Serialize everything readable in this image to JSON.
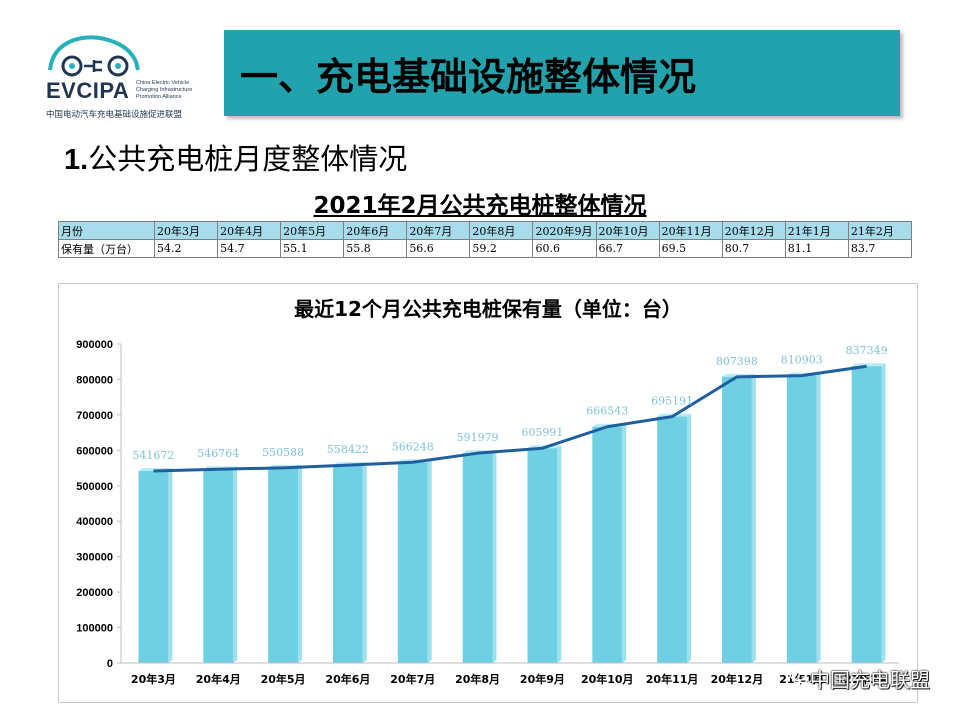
{
  "logo": {
    "name": "EVCIPA",
    "english_lines": [
      "China Electric Vehicle",
      "Charging Infrastructure",
      "Promotion Alliance"
    ],
    "chinese": "中国电动汽车充电基础设施促进联盟"
  },
  "banner": {
    "title": "一、充电基础设施整体情况"
  },
  "section": {
    "num": "1.",
    "text": "公共充电桩月度整体情况"
  },
  "table": {
    "title": "2021年2月公共充电桩整体情况",
    "header": [
      "月份",
      "20年3月",
      "20年4月",
      "20年5月",
      "20年6月",
      "20年7月",
      "20年8月",
      "2020年9月",
      "20年10月",
      "20年11月",
      "20年12月",
      "21年1月",
      "21年2月"
    ],
    "row": [
      "保有量（万台）",
      "54.2",
      "54.7",
      "55.1",
      "55.8",
      "56.6",
      "59.2",
      "60.6",
      "66.7",
      "69.5",
      "80.7",
      "81.1",
      "83.7"
    ]
  },
  "chart_data": {
    "type": "bar",
    "title": "最近12个月公共充电桩保有量（单位：台）",
    "categories": [
      "20年3月",
      "20年4月",
      "20年5月",
      "20年6月",
      "20年7月",
      "20年8月",
      "20年9月",
      "20年10月",
      "20年11月",
      "20年12月",
      "21年1月",
      "21年2月"
    ],
    "values": [
      541672,
      546764,
      550588,
      558422,
      566248,
      591979,
      605991,
      666543,
      695191,
      807398,
      810903,
      837349
    ],
    "overlay_line": true,
    "ylim": [
      0,
      900000
    ],
    "yticks": [
      0,
      100000,
      200000,
      300000,
      400000,
      500000,
      600000,
      700000,
      800000,
      900000
    ],
    "grid": false,
    "legend": "none",
    "colors": {
      "bar": "#6fd0e4",
      "bar_side": "#9ee0ee",
      "line": "#1f5f9e",
      "label": "#7fc3d6"
    }
  },
  "watermark": {
    "text": "中国充电联盟"
  }
}
